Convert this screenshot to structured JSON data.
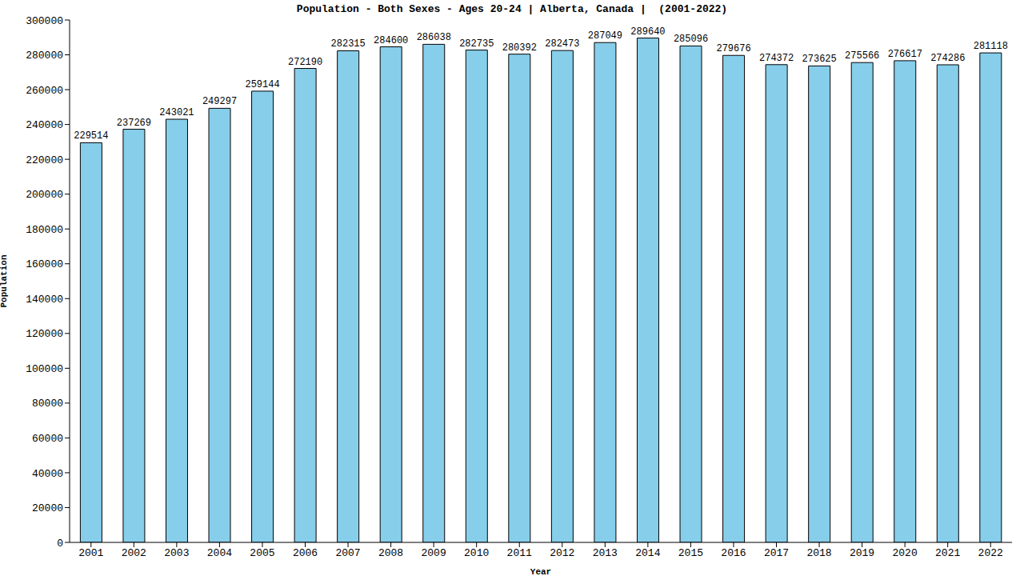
{
  "chart_data": {
    "type": "bar",
    "title": "Population - Both Sexes - Ages 20-24 | Alberta, Canada |  (2001-2022)",
    "x_label": "Year",
    "y_label": "Population",
    "categories": [
      "2001",
      "2002",
      "2003",
      "2004",
      "2005",
      "2006",
      "2007",
      "2008",
      "2009",
      "2010",
      "2011",
      "2012",
      "2013",
      "2014",
      "2015",
      "2016",
      "2017",
      "2018",
      "2019",
      "2020",
      "2021",
      "2022"
    ],
    "values": [
      229514,
      237269,
      243021,
      249297,
      259144,
      272190,
      282315,
      284600,
      286038,
      282735,
      280392,
      282473,
      287049,
      289640,
      285096,
      279676,
      274372,
      273625,
      275566,
      276617,
      274286,
      281118
    ],
    "color": "#87ceeb",
    "ylim": [
      0,
      300000
    ],
    "yticks": [
      0,
      20000,
      40000,
      60000,
      80000,
      100000,
      120000,
      140000,
      160000,
      180000,
      200000,
      220000,
      240000,
      260000,
      280000,
      300000
    ],
    "grid": false,
    "data_labels": true
  }
}
